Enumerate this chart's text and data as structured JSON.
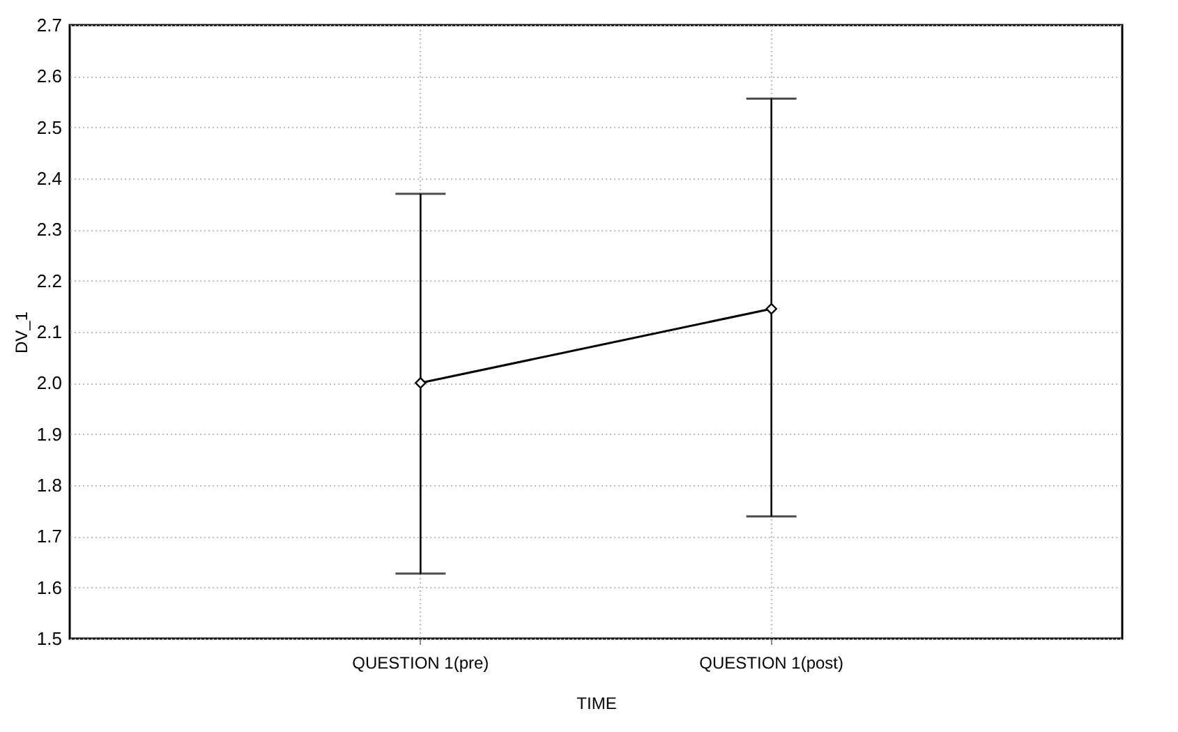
{
  "chart_data": {
    "type": "line",
    "xlabel": "TIME",
    "ylabel": "DV_1",
    "categories": [
      "QUESTION 1(pre)",
      "QUESTION 1(post)"
    ],
    "series": [
      {
        "color": "#000000",
        "values": [
          2.0,
          2.145
        ],
        "errors": [
          [
            1.627,
            2.37
          ],
          [
            1.739,
            2.556
          ]
        ]
      }
    ],
    "ylim": [
      1.5,
      2.7
    ],
    "yticks": [
      1.5,
      1.6,
      1.7,
      1.8,
      1.9,
      {
        "value": 2,
        "label": "2.0"
      },
      2.1,
      2.2,
      2.3,
      2.4,
      2.5,
      2.6,
      2.7
    ],
    "grid": true,
    "marker": "diamond",
    "line_style": "solid"
  }
}
